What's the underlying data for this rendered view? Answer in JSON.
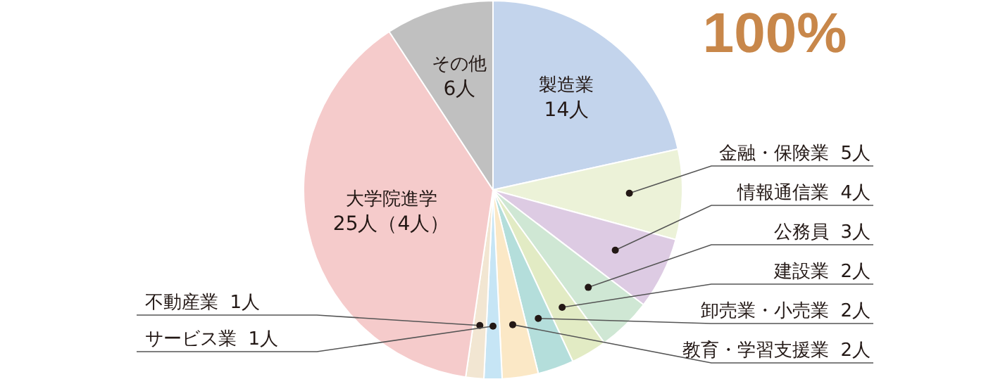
{
  "chart_data": {
    "type": "pie",
    "title": "100%",
    "categories": [
      "製造業",
      "金融・保険業",
      "情報通信業",
      "公務員",
      "建設業",
      "卸売業・小売業",
      "教育・学習支援業",
      "サービス業",
      "不動産業",
      "大学院進学",
      "その他"
    ],
    "values": [
      14,
      5,
      4,
      3,
      2,
      2,
      2,
      1,
      1,
      25,
      6
    ],
    "value_labels": [
      "14人",
      "5人",
      "4人",
      "3人",
      "2人",
      "2人",
      "2人",
      "1人",
      "1人",
      "25人（4人）",
      "6人"
    ],
    "colors": [
      "#c3d4ec",
      "#ecf2d8",
      "#ddcbe3",
      "#cfe7d4",
      "#e2ebc4",
      "#b4dedb",
      "#fbe8c6",
      "#c6e5f5",
      "#f2e6d2",
      "#f5cbcb",
      "#c0c0c0"
    ],
    "legend": false
  }
}
